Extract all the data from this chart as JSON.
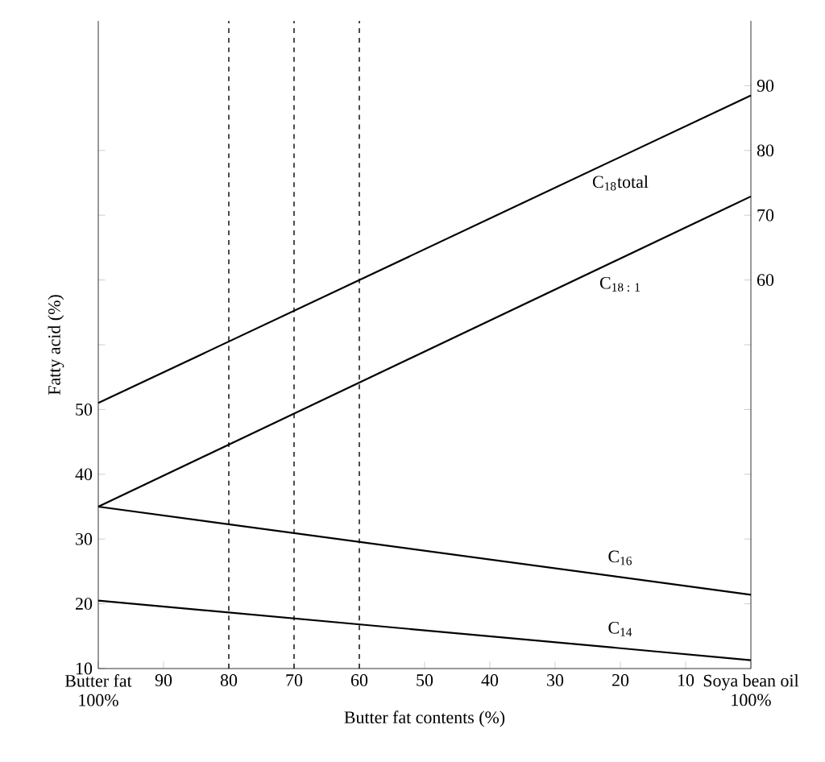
{
  "chart_data": {
    "type": "line",
    "xlabel": "Butter fat contents (%)",
    "ylabel": "Fatty acid (%)",
    "x": [
      100,
      0
    ],
    "series": [
      {
        "name": "C$_{18}$total",
        "color": "#000000",
        "values": [
          51,
          98.5
        ]
      },
      {
        "name": "C$_{18 : 1}$",
        "color": "#000000",
        "values": [
          35,
          82.9
        ]
      },
      {
        "name": "C$_{16}$",
        "color": "#000000",
        "values": [
          35,
          21.4
        ]
      },
      {
        "name": "C$_{14}$",
        "color": "#000000",
        "values": [
          20.5,
          11.3
        ]
      }
    ],
    "xlim": [
      100,
      0
    ],
    "xticks": [
      {
        "value": 100,
        "label": "Butter fat 100%"
      },
      90,
      80,
      70,
      60,
      50,
      40,
      30,
      20,
      10,
      {
        "value": 0,
        "label": "Soya bean oil 100%"
      }
    ],
    "ylim": [
      10,
      110
    ],
    "yticks": [
      10,
      20,
      30,
      40,
      50,
      {
        "value": 60,
        "label": null
      },
      {
        "value": 70,
        "label": null
      },
      {
        "value": 80,
        "label": null
      },
      {
        "value": 90,
        "label": null
      }
    ],
    "y2lim": [
      0,
      100
    ],
    "y2ticks": [
      {
        "value": 10,
        "label": null
      },
      {
        "value": 20,
        "label": null
      },
      {
        "value": 30,
        "label": null
      },
      {
        "value": 40,
        "label": null
      },
      {
        "value": 50,
        "label": null
      },
      60,
      70,
      80,
      90
    ],
    "ref_lines": [
      {
        "axis": "x",
        "value": 80,
        "line_style": "dashed"
      },
      {
        "axis": "x",
        "value": 70,
        "line_style": "dashed"
      },
      {
        "axis": "x",
        "value": 60,
        "line_style": "dashed"
      }
    ],
    "grid": false,
    "marker": "none",
    "line_style": "solid"
  }
}
